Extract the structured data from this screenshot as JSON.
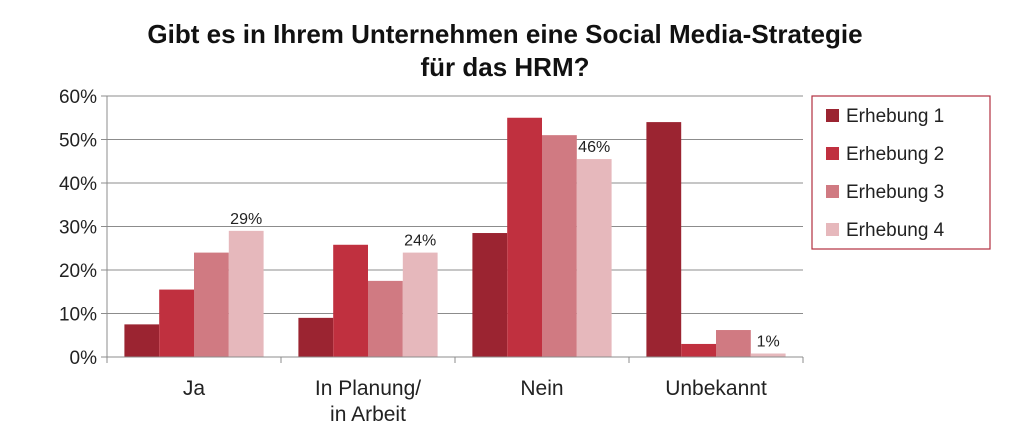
{
  "chart_data": {
    "type": "bar",
    "title": [
      "Gibt es in Ihrem Unternehmen eine Social Media-Strategie",
      "für das HRM?"
    ],
    "categories": [
      [
        "Ja"
      ],
      [
        "In Planung/",
        "in Arbeit"
      ],
      [
        "Nein"
      ],
      [
        "Unbekannt"
      ]
    ],
    "series": [
      {
        "name": "Erhebung 1",
        "values": [
          7.5,
          9,
          28.5,
          54
        ],
        "color": "#9b2431"
      },
      {
        "name": "Erhebung 2",
        "values": [
          15.5,
          25.8,
          55,
          3
        ],
        "color": "#c0303f"
      },
      {
        "name": "Erhebung 3",
        "values": [
          24,
          17.5,
          51,
          6.2
        ],
        "color": "#d07a82"
      },
      {
        "name": "Erhebung 4",
        "values": [
          29,
          24,
          45.5,
          0.8
        ],
        "color": "#e6b8bc"
      }
    ],
    "data_labels": [
      {
        "category": 0,
        "series": 3,
        "text": "29%"
      },
      {
        "category": 1,
        "series": 3,
        "text": "24%"
      },
      {
        "category": 2,
        "series": 3,
        "text": "46%"
      },
      {
        "category": 3,
        "series": 3,
        "text": "1%"
      }
    ],
    "ylim": [
      0,
      60
    ],
    "yticks": [
      0,
      10,
      20,
      30,
      40,
      50,
      60
    ],
    "ytick_labels": [
      "0%",
      "10%",
      "20%",
      "30%",
      "40%",
      "50%",
      "60%"
    ],
    "grid": true,
    "legend_position": "right",
    "xlabel": "",
    "ylabel": ""
  }
}
